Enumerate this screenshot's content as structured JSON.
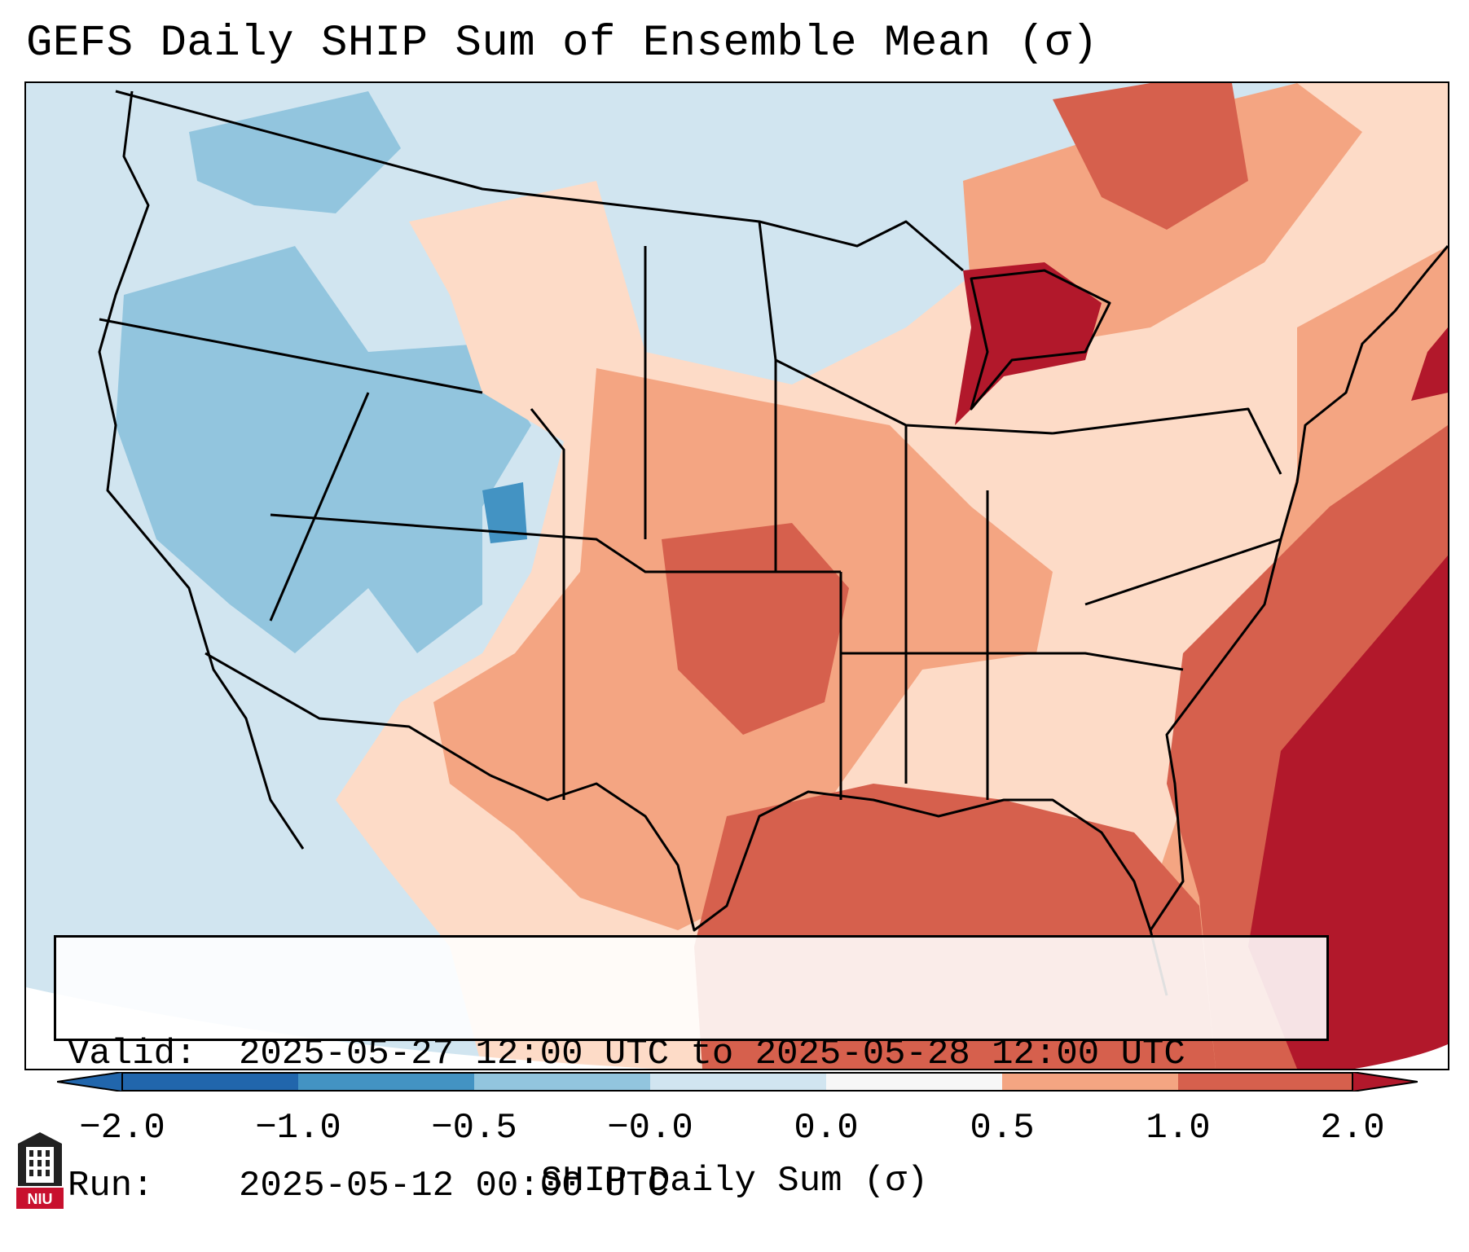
{
  "title": "GEFS Daily SHIP Sum of Ensemble Mean (σ)",
  "info": {
    "valid_label": "Valid:",
    "valid_value": "2025-05-27 12:00 UTC to 2025-05-28 12:00 UTC",
    "run_label": "Run:",
    "run_value": "2025-05-12 00:00 UTC"
  },
  "colorbar": {
    "title": "SHIP Daily Sum (σ)",
    "ticks": [
      "−2.0",
      "−1.0",
      "−0.5",
      "−0.0",
      "0.0",
      "0.5",
      "1.0",
      "2.0"
    ],
    "colors": [
      "#2166ac",
      "#4393c3",
      "#92c5de",
      "#d1e5f0",
      "#f7f7f7",
      "#fddbc7",
      "#f4a582",
      "#d6604d",
      "#b2182b"
    ]
  },
  "logo": {
    "text": "NIU"
  }
}
